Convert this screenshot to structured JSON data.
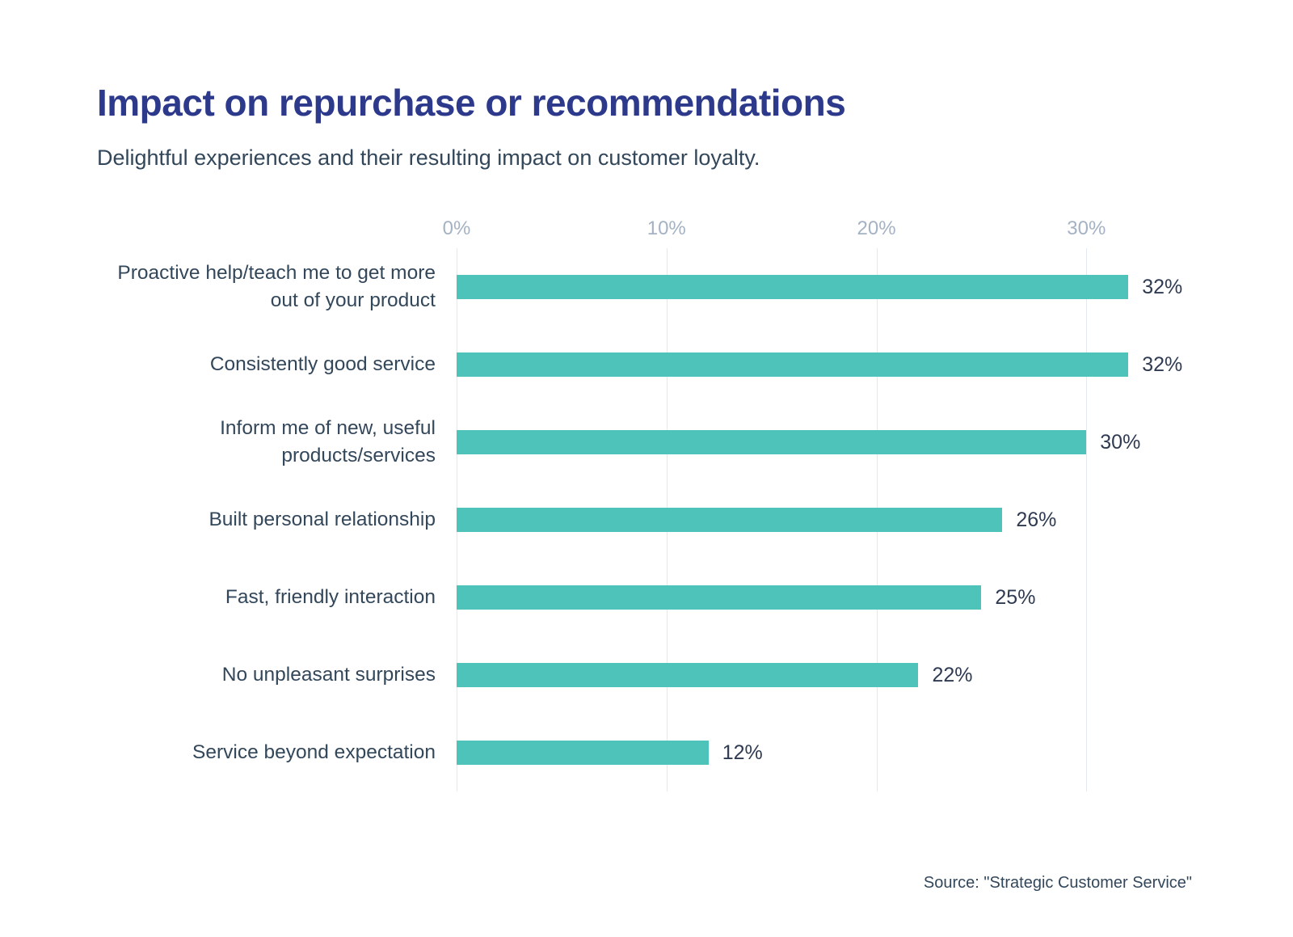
{
  "page": {
    "title": "Impact on repurchase or recommendations",
    "subtitle": "Delightful experiences and their resulting impact on customer loyalty.",
    "source": "Source: \"Strategic Customer Service\""
  },
  "colors": {
    "title": "#2d3a8c",
    "text": "#33475b",
    "tick": "#a4b2c3",
    "gridline": "#e4e9ee",
    "bar": "#4ec3ba",
    "background": "#ffffff"
  },
  "chart_data": {
    "type": "bar",
    "orientation": "horizontal",
    "title": "Impact on repurchase or recommendations",
    "subtitle": "Delightful experiences and their resulting impact on customer loyalty.",
    "categories": [
      "Proactive help/teach me to get more out of your product",
      "Consistently good service",
      "Inform me of new, useful products/services",
      "Built personal relationship",
      "Fast, friendly interaction",
      "No unpleasant surprises",
      "Service beyond expectation"
    ],
    "values": [
      32,
      32,
      30,
      26,
      25,
      22,
      12
    ],
    "value_suffix": "%",
    "ticks": [
      0,
      10,
      20,
      30
    ],
    "tick_labels": [
      "0%",
      "10%",
      "20%",
      "30%"
    ],
    "axis_max": 33.3,
    "xlabel": "",
    "ylabel": "",
    "grid": true,
    "legend": false,
    "bar_color": "#4ec3ba"
  }
}
